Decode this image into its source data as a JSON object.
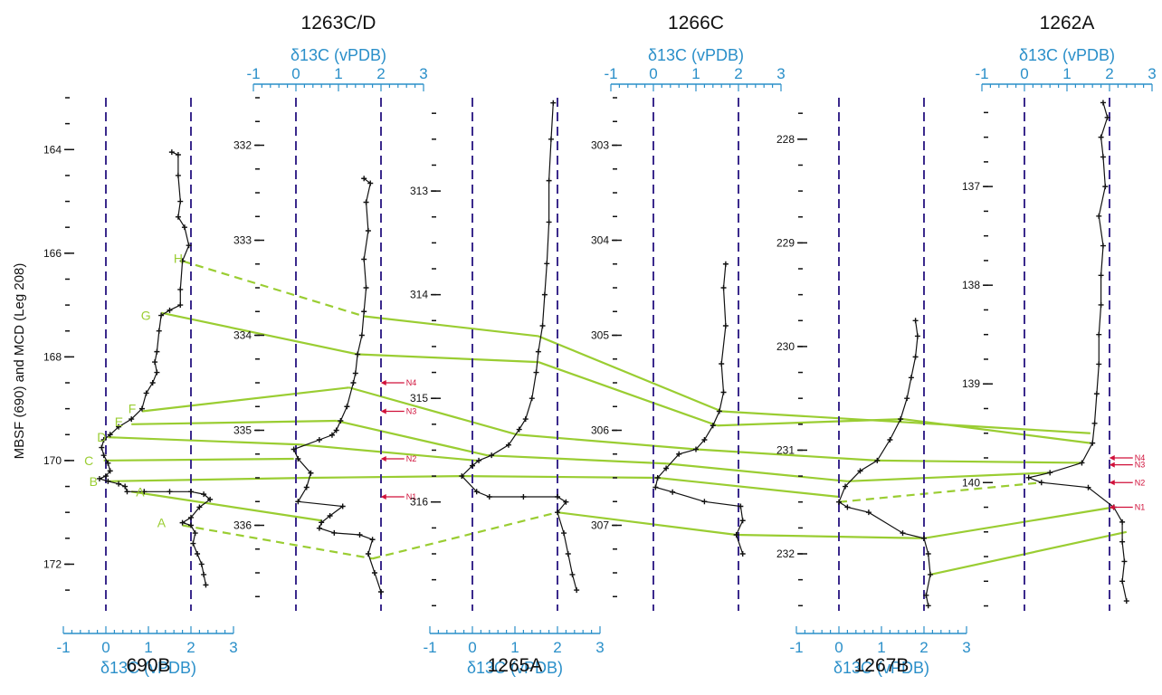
{
  "chart_data": {
    "type": "line",
    "ylabel": "MBSF (690) and MCD (Leg 208)",
    "x_axis_title": "δ13C (vPDB)",
    "xlim": [
      -1,
      3
    ],
    "x_ticks": [
      "-1",
      "0",
      "1",
      "2",
      "3"
    ],
    "dashed_reference_x": [
      0,
      2
    ],
    "colors": {
      "profile": "#111111",
      "axis": "#2a8fc9",
      "reference": "#3b2a8c",
      "correlation": "#9acd32",
      "marker": "#d0103a"
    },
    "sites": [
      {
        "name": "690B",
        "title_position": "bottom",
        "y_ticks": [
          "164",
          "166",
          "168",
          "170",
          "172"
        ],
        "ylim": [
          163.0,
          172.9
        ],
        "profile": [
          [
            1.55,
            164.05
          ],
          [
            1.7,
            164.1
          ],
          [
            1.7,
            164.5
          ],
          [
            1.75,
            165.0
          ],
          [
            1.7,
            165.3
          ],
          [
            1.85,
            165.5
          ],
          [
            1.95,
            165.85
          ],
          [
            1.8,
            166.15
          ],
          [
            1.75,
            166.7
          ],
          [
            1.75,
            167.0
          ],
          [
            1.5,
            167.1
          ],
          [
            1.3,
            167.2
          ],
          [
            1.25,
            167.5
          ],
          [
            1.2,
            167.9
          ],
          [
            1.15,
            168.1
          ],
          [
            1.2,
            168.3
          ],
          [
            1.1,
            168.5
          ],
          [
            0.95,
            168.7
          ],
          [
            0.85,
            169.0
          ],
          [
            0.6,
            169.2
          ],
          [
            0.3,
            169.35
          ],
          [
            0.1,
            169.5
          ],
          [
            -0.05,
            169.6
          ],
          [
            -0.1,
            169.75
          ],
          [
            -0.05,
            169.9
          ],
          [
            0.05,
            170.05
          ],
          [
            0.1,
            170.2
          ],
          [
            0.0,
            170.3
          ],
          [
            -0.15,
            170.35
          ],
          [
            0.05,
            170.4
          ],
          [
            0.3,
            170.45
          ],
          [
            0.45,
            170.5
          ],
          [
            0.5,
            170.6
          ],
          [
            0.9,
            170.6
          ],
          [
            1.5,
            170.6
          ],
          [
            2.0,
            170.6
          ],
          [
            2.3,
            170.65
          ],
          [
            2.45,
            170.75
          ],
          [
            2.2,
            170.9
          ],
          [
            2.0,
            171.1
          ],
          [
            1.8,
            171.2
          ],
          [
            2.0,
            171.25
          ],
          [
            2.1,
            171.4
          ],
          [
            2.05,
            171.6
          ],
          [
            2.15,
            171.8
          ],
          [
            2.25,
            172.0
          ],
          [
            2.3,
            172.2
          ],
          [
            2.35,
            172.4
          ]
        ],
        "tie_labels": [
          {
            "label": "H",
            "x": 1.85,
            "y": 166.1
          },
          {
            "label": "G",
            "x": 1.1,
            "y": 167.2
          },
          {
            "label": "F",
            "x": 0.75,
            "y": 169.0
          },
          {
            "label": "E",
            "x": 0.45,
            "y": 169.25
          },
          {
            "label": "D",
            "x": 0.05,
            "y": 169.55
          },
          {
            "label": "C",
            "x": -0.25,
            "y": 170.0
          },
          {
            "label": "B",
            "x": -0.15,
            "y": 170.4
          },
          {
            "label": "A",
            "x": 0.95,
            "y": 170.6
          },
          {
            "label": "A",
            "x": 1.45,
            "y": 171.2
          }
        ]
      },
      {
        "name": "1263C/D",
        "title_position": "top",
        "y_ticks": [
          "332",
          "333",
          "334",
          "335",
          "336"
        ],
        "ylim": [
          331.5,
          336.9
        ],
        "profile": [
          [
            1.6,
            332.35
          ],
          [
            1.75,
            332.4
          ],
          [
            1.65,
            332.6
          ],
          [
            1.7,
            332.9
          ],
          [
            1.6,
            333.2
          ],
          [
            1.65,
            333.5
          ],
          [
            1.6,
            333.75
          ],
          [
            1.55,
            334.0
          ],
          [
            1.45,
            334.2
          ],
          [
            1.4,
            334.4
          ],
          [
            1.35,
            334.5
          ],
          [
            1.2,
            334.75
          ],
          [
            1.05,
            334.9
          ],
          [
            0.95,
            335.0
          ],
          [
            0.85,
            335.05
          ],
          [
            0.55,
            335.1
          ],
          [
            -0.05,
            335.2
          ],
          [
            0.05,
            335.3
          ],
          [
            0.35,
            335.45
          ],
          [
            0.25,
            335.6
          ],
          [
            0.05,
            335.75
          ],
          [
            1.1,
            335.8
          ],
          [
            0.8,
            335.9
          ],
          [
            0.6,
            335.97
          ],
          [
            0.55,
            336.03
          ],
          [
            0.9,
            336.08
          ],
          [
            1.5,
            336.1
          ],
          [
            1.8,
            336.15
          ],
          [
            1.7,
            336.3
          ],
          [
            1.85,
            336.5
          ],
          [
            2.0,
            336.7
          ]
        ],
        "markers": [
          {
            "label": "N4",
            "y": 334.5
          },
          {
            "label": "N3",
            "y": 334.8
          },
          {
            "label": "N2",
            "y": 335.3
          },
          {
            "label": "N1",
            "y": 335.7
          }
        ]
      },
      {
        "name": "1265A",
        "title_position": "bottom",
        "y_ticks": [
          "313",
          "314",
          "315",
          "316"
        ],
        "ylim": [
          312.1,
          317.05
        ],
        "profile": [
          [
            1.9,
            312.15
          ],
          [
            1.85,
            312.5
          ],
          [
            1.8,
            312.9
          ],
          [
            1.8,
            313.3
          ],
          [
            1.75,
            313.7
          ],
          [
            1.7,
            314.0
          ],
          [
            1.65,
            314.3
          ],
          [
            1.55,
            314.55
          ],
          [
            1.5,
            314.75
          ],
          [
            1.4,
            315.0
          ],
          [
            1.25,
            315.2
          ],
          [
            1.1,
            315.3
          ],
          [
            0.85,
            315.45
          ],
          [
            0.45,
            315.55
          ],
          [
            0.15,
            315.6
          ],
          [
            0.0,
            315.65
          ],
          [
            -0.25,
            315.75
          ],
          [
            0.1,
            315.9
          ],
          [
            0.4,
            315.95
          ],
          [
            1.2,
            315.95
          ],
          [
            2.0,
            315.95
          ],
          [
            2.2,
            316.0
          ],
          [
            2.0,
            316.1
          ],
          [
            2.15,
            316.3
          ],
          [
            2.25,
            316.5
          ],
          [
            2.35,
            316.7
          ],
          [
            2.45,
            316.85
          ]
        ]
      },
      {
        "name": "1266C",
        "title_position": "top",
        "y_ticks": [
          "303",
          "304",
          "305",
          "306",
          "307"
        ],
        "ylim": [
          302.5,
          307.9
        ],
        "profile": [
          [
            1.7,
            304.25
          ],
          [
            1.65,
            304.5
          ],
          [
            1.7,
            304.9
          ],
          [
            1.6,
            305.3
          ],
          [
            1.65,
            305.6
          ],
          [
            1.55,
            305.8
          ],
          [
            1.4,
            305.95
          ],
          [
            1.2,
            306.1
          ],
          [
            1.0,
            306.2
          ],
          [
            0.6,
            306.25
          ],
          [
            0.3,
            306.4
          ],
          [
            0.1,
            306.5
          ],
          [
            0.05,
            306.6
          ],
          [
            0.45,
            306.65
          ],
          [
            1.2,
            306.75
          ],
          [
            2.05,
            306.8
          ],
          [
            2.1,
            306.95
          ],
          [
            1.95,
            307.1
          ],
          [
            2.1,
            307.3
          ]
        ]
      },
      {
        "name": "1267B",
        "title_position": "bottom",
        "y_ticks": [
          "228",
          "229",
          "230",
          "231",
          "232"
        ],
        "ylim": [
          227.6,
          232.55
        ],
        "profile": [
          [
            1.8,
            229.75
          ],
          [
            1.85,
            229.9
          ],
          [
            1.8,
            230.1
          ],
          [
            1.7,
            230.3
          ],
          [
            1.6,
            230.5
          ],
          [
            1.45,
            230.7
          ],
          [
            1.2,
            230.9
          ],
          [
            0.9,
            231.1
          ],
          [
            0.5,
            231.2
          ],
          [
            0.15,
            231.35
          ],
          [
            0.0,
            231.5
          ],
          [
            0.2,
            231.55
          ],
          [
            0.7,
            231.6
          ],
          [
            1.5,
            231.8
          ],
          [
            2.0,
            231.85
          ],
          [
            2.1,
            232.0
          ],
          [
            2.15,
            232.2
          ],
          [
            2.05,
            232.4
          ],
          [
            2.1,
            232.5
          ]
        ]
      },
      {
        "name": "1262A",
        "title_position": "top",
        "y_ticks": [
          "137",
          "138",
          "139",
          "140"
        ],
        "ylim": [
          136.1,
          141.3
        ],
        "profile": [
          [
            1.85,
            136.15
          ],
          [
            1.95,
            136.3
          ],
          [
            1.8,
            136.5
          ],
          [
            1.85,
            136.7
          ],
          [
            1.9,
            137.0
          ],
          [
            1.75,
            137.3
          ],
          [
            1.85,
            137.6
          ],
          [
            1.8,
            137.9
          ],
          [
            1.8,
            138.2
          ],
          [
            1.75,
            138.5
          ],
          [
            1.75,
            138.8
          ],
          [
            1.7,
            139.1
          ],
          [
            1.65,
            139.4
          ],
          [
            1.6,
            139.6
          ],
          [
            1.35,
            139.8
          ],
          [
            0.6,
            139.9
          ],
          [
            0.1,
            139.95
          ],
          [
            0.4,
            140.0
          ],
          [
            1.5,
            140.05
          ],
          [
            2.1,
            140.25
          ],
          [
            2.3,
            140.4
          ],
          [
            2.3,
            140.6
          ],
          [
            2.35,
            140.8
          ],
          [
            2.3,
            141.0
          ],
          [
            2.4,
            141.2
          ]
        ],
        "markers": [
          {
            "label": "N4",
            "y": 139.75
          },
          {
            "label": "N3",
            "y": 139.82
          },
          {
            "label": "N2",
            "y": 140.0
          },
          {
            "label": "N1",
            "y": 140.25
          }
        ]
      }
    ]
  }
}
